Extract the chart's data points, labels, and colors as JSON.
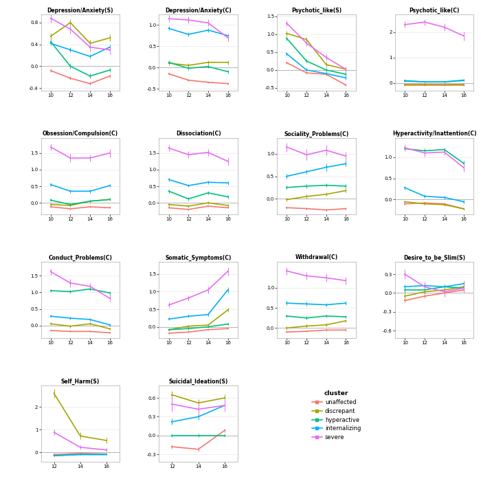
{
  "panels": [
    {
      "title": "Depression/Anxiety(S)",
      "x": [
        10,
        12,
        14,
        16
      ],
      "data": {
        "unaffected": [
          -0.08,
          -0.22,
          -0.32,
          -0.18
        ],
        "discrepant": [
          0.55,
          0.8,
          0.42,
          0.52
        ],
        "hyperactive": [
          0.45,
          0.0,
          -0.18,
          -0.07
        ],
        "internalizing": [
          0.42,
          0.3,
          0.18,
          0.35
        ],
        "severe": [
          0.88,
          0.68,
          0.35,
          0.3
        ]
      },
      "err": {
        "unaffected": [
          0.03,
          0.03,
          0.03,
          0.03
        ],
        "discrepant": [
          0.06,
          0.06,
          0.06,
          0.06
        ],
        "hyperactive": [
          0.04,
          0.04,
          0.04,
          0.04
        ],
        "internalizing": [
          0.04,
          0.04,
          0.04,
          0.04
        ],
        "severe": [
          0.08,
          0.08,
          0.08,
          0.08
        ]
      },
      "ylim": [
        -0.45,
        0.95
      ],
      "yticks": [
        -0.4,
        0.0,
        0.4,
        0.8
      ]
    },
    {
      "title": "Depression/Anxiety(C)",
      "x": [
        10,
        12,
        14,
        16
      ],
      "data": {
        "unaffected": [
          -0.15,
          -0.3,
          -0.35,
          -0.38
        ],
        "discrepant": [
          0.1,
          0.05,
          0.12,
          0.12
        ],
        "hyperactive": [
          0.12,
          -0.02,
          0.02,
          -0.1
        ],
        "internalizing": [
          0.92,
          0.78,
          0.88,
          0.75
        ],
        "severe": [
          1.15,
          1.12,
          1.05,
          0.7
        ]
      },
      "err": {
        "unaffected": [
          0.02,
          0.02,
          0.02,
          0.02
        ],
        "discrepant": [
          0.05,
          0.05,
          0.05,
          0.05
        ],
        "hyperactive": [
          0.04,
          0.04,
          0.04,
          0.04
        ],
        "internalizing": [
          0.05,
          0.05,
          0.05,
          0.05
        ],
        "severe": [
          0.08,
          0.08,
          0.08,
          0.08
        ]
      },
      "ylim": [
        -0.55,
        1.25
      ],
      "yticks": [
        -0.5,
        0.0,
        0.5,
        1.0
      ]
    },
    {
      "title": "Psychotic_like(S)",
      "x": [
        10,
        12,
        14,
        16
      ],
      "data": {
        "unaffected": [
          0.2,
          -0.08,
          -0.12,
          -0.42
        ],
        "discrepant": [
          1.02,
          0.85,
          0.15,
          0.02
        ],
        "hyperactive": [
          0.88,
          0.25,
          0.0,
          -0.12
        ],
        "internalizing": [
          0.45,
          0.0,
          -0.1,
          -0.22
        ],
        "severe": [
          1.3,
          0.75,
          0.35,
          0.02
        ]
      },
      "err": {
        "unaffected": [
          0.03,
          0.03,
          0.03,
          0.03
        ],
        "discrepant": [
          0.07,
          0.07,
          0.07,
          0.07
        ],
        "hyperactive": [
          0.05,
          0.05,
          0.05,
          0.05
        ],
        "internalizing": [
          0.05,
          0.05,
          0.05,
          0.05
        ],
        "severe": [
          0.08,
          0.08,
          0.08,
          0.08
        ]
      },
      "ylim": [
        -0.58,
        1.55
      ],
      "yticks": [
        -0.5,
        0.0,
        0.5,
        1.0,
        1.5
      ]
    },
    {
      "title": "Psychotic_like(C)",
      "x": [
        10,
        12,
        14,
        16
      ],
      "data": {
        "unaffected": [
          -0.08,
          -0.08,
          -0.08,
          -0.08
        ],
        "discrepant": [
          -0.05,
          -0.05,
          -0.05,
          -0.05
        ],
        "hyperactive": [
          0.08,
          0.05,
          0.05,
          0.12
        ],
        "internalizing": [
          0.1,
          0.05,
          0.05,
          0.1
        ],
        "severe": [
          2.3,
          2.4,
          2.2,
          1.85
        ]
      },
      "err": {
        "unaffected": [
          0.02,
          0.02,
          0.02,
          0.02
        ],
        "discrepant": [
          0.03,
          0.03,
          0.03,
          0.03
        ],
        "hyperactive": [
          0.03,
          0.03,
          0.03,
          0.03
        ],
        "internalizing": [
          0.03,
          0.03,
          0.03,
          0.03
        ],
        "severe": [
          0.12,
          0.12,
          0.15,
          0.18
        ]
      },
      "ylim": [
        -0.3,
        2.7
      ],
      "yticks": [
        0,
        1,
        2
      ]
    },
    {
      "title": "Obsession/Compulsion(C)",
      "x": [
        10,
        12,
        14,
        16
      ],
      "data": {
        "unaffected": [
          -0.12,
          -0.18,
          -0.12,
          -0.15
        ],
        "discrepant": [
          -0.05,
          -0.08,
          0.05,
          0.1
        ],
        "hyperactive": [
          0.08,
          -0.05,
          0.05,
          0.1
        ],
        "internalizing": [
          0.55,
          0.35,
          0.35,
          0.52
        ],
        "severe": [
          1.68,
          1.35,
          1.35,
          1.5
        ]
      },
      "err": {
        "unaffected": [
          0.02,
          0.02,
          0.02,
          0.02
        ],
        "discrepant": [
          0.04,
          0.04,
          0.04,
          0.04
        ],
        "hyperactive": [
          0.04,
          0.04,
          0.04,
          0.04
        ],
        "internalizing": [
          0.05,
          0.05,
          0.05,
          0.05
        ],
        "severe": [
          0.1,
          0.12,
          0.1,
          0.12
        ]
      },
      "ylim": [
        -0.35,
        1.95
      ],
      "yticks": [
        0.0,
        0.5,
        1.0,
        1.5
      ]
    },
    {
      "title": "Dissociation(C)",
      "x": [
        10,
        12,
        14,
        16
      ],
      "data": {
        "unaffected": [
          -0.15,
          -0.2,
          -0.1,
          -0.15
        ],
        "discrepant": [
          -0.05,
          -0.1,
          0.0,
          -0.08
        ],
        "hyperactive": [
          0.35,
          0.12,
          0.3,
          0.18
        ],
        "internalizing": [
          0.7,
          0.52,
          0.62,
          0.6
        ],
        "severe": [
          1.65,
          1.45,
          1.52,
          1.25
        ]
      },
      "err": {
        "unaffected": [
          0.02,
          0.02,
          0.02,
          0.02
        ],
        "discrepant": [
          0.04,
          0.04,
          0.04,
          0.04
        ],
        "hyperactive": [
          0.05,
          0.05,
          0.05,
          0.05
        ],
        "internalizing": [
          0.05,
          0.05,
          0.05,
          0.05
        ],
        "severe": [
          0.1,
          0.1,
          0.1,
          0.12
        ]
      },
      "ylim": [
        -0.35,
        1.95
      ],
      "yticks": [
        0.0,
        0.5,
        1.0,
        1.5
      ]
    },
    {
      "title": "Sociality_Problems(C)",
      "x": [
        10,
        12,
        14,
        16
      ],
      "data": {
        "unaffected": [
          -0.2,
          -0.22,
          -0.25,
          -0.22
        ],
        "discrepant": [
          -0.02,
          0.05,
          0.1,
          0.18
        ],
        "hyperactive": [
          0.25,
          0.28,
          0.3,
          0.28
        ],
        "internalizing": [
          0.5,
          0.6,
          0.7,
          0.78
        ],
        "severe": [
          1.15,
          0.98,
          1.08,
          0.95
        ]
      },
      "err": {
        "unaffected": [
          0.02,
          0.02,
          0.02,
          0.02
        ],
        "discrepant": [
          0.04,
          0.04,
          0.04,
          0.04
        ],
        "hyperactive": [
          0.04,
          0.04,
          0.04,
          0.04
        ],
        "internalizing": [
          0.05,
          0.05,
          0.08,
          0.06
        ],
        "severe": [
          0.1,
          0.12,
          0.12,
          0.1
        ]
      },
      "ylim": [
        -0.35,
        1.35
      ],
      "yticks": [
        0.0,
        0.5,
        1.0
      ]
    },
    {
      "title": "Hyperactivity/Inattention(C)",
      "x": [
        10,
        12,
        14,
        16
      ],
      "data": {
        "unaffected": [
          -0.1,
          -0.08,
          -0.1,
          -0.22
        ],
        "discrepant": [
          -0.05,
          -0.1,
          -0.12,
          -0.22
        ],
        "hyperactive": [
          1.2,
          1.15,
          1.18,
          0.85
        ],
        "internalizing": [
          0.28,
          0.08,
          0.05,
          -0.05
        ],
        "severe": [
          1.22,
          1.1,
          1.12,
          0.75
        ]
      },
      "err": {
        "unaffected": [
          0.02,
          0.02,
          0.02,
          0.02
        ],
        "discrepant": [
          0.03,
          0.03,
          0.03,
          0.03
        ],
        "hyperactive": [
          0.05,
          0.05,
          0.05,
          0.06
        ],
        "internalizing": [
          0.04,
          0.04,
          0.04,
          0.04
        ],
        "severe": [
          0.08,
          0.08,
          0.08,
          0.1
        ]
      },
      "ylim": [
        -0.35,
        1.45
      ],
      "yticks": [
        0.0,
        0.5,
        1.0
      ]
    },
    {
      "title": "Conduct_Problems(C)",
      "x": [
        10,
        12,
        14,
        16
      ],
      "data": {
        "unaffected": [
          -0.15,
          -0.18,
          -0.18,
          -0.22
        ],
        "discrepant": [
          0.05,
          -0.02,
          0.05,
          -0.1
        ],
        "hyperactive": [
          1.05,
          1.02,
          1.1,
          0.98
        ],
        "internalizing": [
          0.28,
          0.22,
          0.18,
          0.02
        ],
        "severe": [
          1.62,
          1.28,
          1.18,
          0.82
        ]
      },
      "err": {
        "unaffected": [
          0.02,
          0.02,
          0.02,
          0.02
        ],
        "discrepant": [
          0.04,
          0.04,
          0.04,
          0.04
        ],
        "hyperactive": [
          0.05,
          0.05,
          0.06,
          0.05
        ],
        "internalizing": [
          0.04,
          0.04,
          0.04,
          0.04
        ],
        "severe": [
          0.1,
          0.12,
          0.1,
          0.1
        ]
      },
      "ylim": [
        -0.38,
        1.92
      ],
      "yticks": [
        0.0,
        0.5,
        1.0,
        1.5
      ]
    },
    {
      "title": "Somatic_Symptoms(C)",
      "x": [
        10,
        12,
        14,
        16
      ],
      "data": {
        "unaffected": [
          -0.18,
          -0.15,
          -0.08,
          -0.05
        ],
        "discrepant": [
          -0.08,
          0.02,
          0.05,
          0.48
        ],
        "hyperactive": [
          -0.08,
          -0.05,
          0.0,
          0.08
        ],
        "internalizing": [
          0.22,
          0.3,
          0.35,
          1.05
        ],
        "severe": [
          0.62,
          0.82,
          1.05,
          1.58
        ]
      },
      "err": {
        "unaffected": [
          0.02,
          0.02,
          0.02,
          0.02
        ],
        "discrepant": [
          0.04,
          0.04,
          0.04,
          0.06
        ],
        "hyperactive": [
          0.03,
          0.03,
          0.03,
          0.03
        ],
        "internalizing": [
          0.04,
          0.04,
          0.05,
          0.08
        ],
        "severe": [
          0.08,
          0.08,
          0.1,
          0.12
        ]
      },
      "ylim": [
        -0.32,
        1.85
      ],
      "yticks": [
        0.0,
        0.5,
        1.0,
        1.5
      ]
    },
    {
      "title": "Withdrawal(C)",
      "x": [
        10,
        12,
        14,
        16
      ],
      "data": {
        "unaffected": [
          -0.1,
          -0.08,
          -0.05,
          -0.05
        ],
        "discrepant": [
          0.0,
          0.05,
          0.08,
          0.18
        ],
        "hyperactive": [
          0.3,
          0.25,
          0.3,
          0.28
        ],
        "internalizing": [
          0.62,
          0.6,
          0.58,
          0.62
        ],
        "severe": [
          1.42,
          1.3,
          1.25,
          1.18
        ]
      },
      "err": {
        "unaffected": [
          0.02,
          0.02,
          0.02,
          0.02
        ],
        "discrepant": [
          0.04,
          0.04,
          0.04,
          0.04
        ],
        "hyperactive": [
          0.04,
          0.04,
          0.04,
          0.04
        ],
        "internalizing": [
          0.05,
          0.05,
          0.05,
          0.05
        ],
        "severe": [
          0.1,
          0.1,
          0.1,
          0.1
        ]
      },
      "ylim": [
        -0.25,
        1.65
      ],
      "yticks": [
        0.0,
        0.5,
        1.0
      ]
    },
    {
      "title": "Desire_to_be_Slim(S)",
      "x": [
        10,
        12,
        14,
        16
      ],
      "data": {
        "unaffected": [
          -0.12,
          -0.05,
          0.0,
          0.05
        ],
        "discrepant": [
          -0.05,
          0.02,
          0.05,
          0.1
        ],
        "hyperactive": [
          0.05,
          0.05,
          0.1,
          0.08
        ],
        "internalizing": [
          0.1,
          0.12,
          0.1,
          0.15
        ],
        "severe": [
          0.3,
          0.1,
          0.02,
          0.08
        ]
      },
      "err": {
        "unaffected": [
          0.03,
          0.03,
          0.03,
          0.03
        ],
        "discrepant": [
          0.04,
          0.04,
          0.04,
          0.04
        ],
        "hyperactive": [
          0.04,
          0.04,
          0.04,
          0.04
        ],
        "internalizing": [
          0.04,
          0.04,
          0.04,
          0.04
        ],
        "severe": [
          0.08,
          0.08,
          0.08,
          0.08
        ]
      },
      "ylim": [
        -0.72,
        0.5
      ],
      "yticks": [
        -0.6,
        -0.3,
        0.0,
        0.3
      ]
    },
    {
      "title": "Self_Harm(S)",
      "x": [
        12,
        14,
        16
      ],
      "data": {
        "unaffected": [
          -0.1,
          -0.05,
          -0.08
        ],
        "discrepant": [
          2.6,
          0.72,
          0.52
        ],
        "hyperactive": [
          -0.15,
          -0.1,
          -0.1
        ],
        "internalizing": [
          -0.15,
          -0.1,
          -0.1
        ],
        "severe": [
          0.88,
          0.22,
          0.1
        ]
      },
      "err": {
        "unaffected": [
          0.03,
          0.03,
          0.03
        ],
        "discrepant": [
          0.2,
          0.15,
          0.12
        ],
        "hyperactive": [
          0.03,
          0.03,
          0.03
        ],
        "internalizing": [
          0.03,
          0.03,
          0.03
        ],
        "severe": [
          0.12,
          0.08,
          0.08
        ]
      },
      "ylim": [
        -0.42,
        2.95
      ],
      "yticks": [
        0,
        1,
        2
      ]
    },
    {
      "title": "Suicidal_Ideation(S)",
      "x": [
        12,
        14,
        16
      ],
      "data": {
        "unaffected": [
          -0.18,
          -0.22,
          0.08
        ],
        "discrepant": [
          0.65,
          0.52,
          0.6
        ],
        "hyperactive": [
          0.0,
          0.0,
          0.0
        ],
        "internalizing": [
          0.22,
          0.3,
          0.48
        ],
        "severe": [
          0.5,
          0.42,
          0.48
        ]
      },
      "err": {
        "unaffected": [
          0.03,
          0.03,
          0.03
        ],
        "discrepant": [
          0.06,
          0.06,
          0.06
        ],
        "hyperactive": [
          0.03,
          0.03,
          0.03
        ],
        "internalizing": [
          0.05,
          0.05,
          0.05
        ],
        "severe": [
          0.12,
          0.1,
          0.1
        ]
      },
      "ylim": [
        -0.42,
        0.8
      ],
      "yticks": [
        -0.3,
        0.0,
        0.3,
        0.6
      ]
    }
  ],
  "clusters": [
    "unaffected",
    "discrepant",
    "hyperactive",
    "internalizing",
    "severe"
  ],
  "colors": {
    "unaffected": "#F8766D",
    "discrepant": "#A3A500",
    "hyperactive": "#00BF7D",
    "internalizing": "#00B0F6",
    "severe": "#E76BF3"
  },
  "figsize": [
    7.0,
    7.0
  ],
  "bg_color": "#FFFFFF",
  "panel_bg": "#FFFFFF",
  "zero_line_color": "#AAAAAA",
  "grid_color": "#E8E8E8"
}
